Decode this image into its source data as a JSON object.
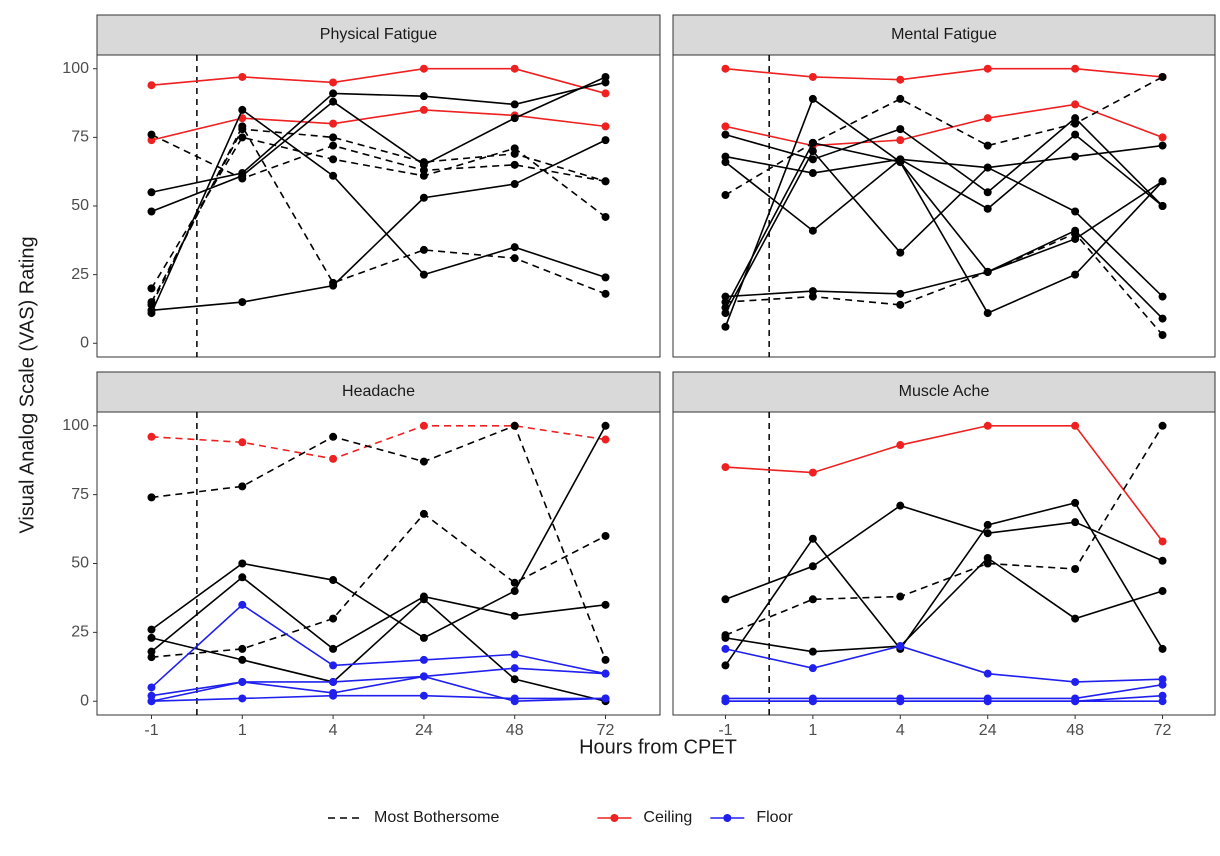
{
  "chart_data": {
    "type": "line",
    "x_label": "Hours from CPET",
    "y_label": "Visual Analog Scale (VAS) Rating",
    "categories": [
      "-1",
      "1",
      "4",
      "24",
      "48",
      "72"
    ],
    "ylim": [
      -5,
      105
    ],
    "yticks": [
      0,
      25,
      50,
      75,
      100
    ],
    "legend_position": "bottom",
    "legend": [
      {
        "name": "Most Bothersome",
        "color": "#000000",
        "dashed": true
      },
      {
        "name": "Ceiling",
        "color": "#ee2020",
        "dashed": false
      },
      {
        "name": "Floor",
        "color": "#2020ee",
        "dashed": false
      }
    ],
    "panels": [
      {
        "title": "Physical Fatigue",
        "series": [
          {
            "color": "#ee2020",
            "dashed": false,
            "values": [
              94,
              97,
              95,
              100,
              100,
              91
            ]
          },
          {
            "color": "#ee2020",
            "dashed": false,
            "values": [
              74,
              82,
              80,
              85,
              83,
              79
            ]
          },
          {
            "color": "#000000",
            "dashed": false,
            "values": [
              55,
              62,
              91,
              90,
              87,
              95
            ]
          },
          {
            "color": "#000000",
            "dashed": false,
            "values": [
              48,
              61,
              88,
              65,
              82,
              97
            ]
          },
          {
            "color": "#000000",
            "dashed": false,
            "values": [
              12,
              15,
              21,
              53,
              58,
              74
            ]
          },
          {
            "color": "#000000",
            "dashed": false,
            "values": [
              11,
              85,
              61,
              25,
              35,
              24
            ]
          },
          {
            "color": "#000000",
            "dashed": true,
            "values": [
              76,
              60,
              72,
              63,
              65,
              59
            ]
          },
          {
            "color": "#000000",
            "dashed": true,
            "values": [
              20,
              75,
              67,
              61,
              71,
              46
            ]
          },
          {
            "color": "#000000",
            "dashed": true,
            "values": [
              15,
              78,
              75,
              66,
              69,
              59
            ]
          },
          {
            "color": "#000000",
            "dashed": true,
            "values": [
              14,
              79,
              22,
              34,
              31,
              18
            ]
          }
        ]
      },
      {
        "title": "Mental Fatigue",
        "series": [
          {
            "color": "#ee2020",
            "dashed": false,
            "values": [
              100,
              97,
              96,
              100,
              100,
              97
            ]
          },
          {
            "color": "#ee2020",
            "dashed": false,
            "values": [
              79,
              72,
              74,
              82,
              87,
              75
            ]
          },
          {
            "color": "#000000",
            "dashed": true,
            "values": [
              54,
              73,
              89,
              72,
              80,
              97
            ]
          },
          {
            "color": "#000000",
            "dashed": true,
            "values": [
              15,
              17,
              14,
              26,
              40,
              3
            ]
          },
          {
            "color": "#000000",
            "dashed": false,
            "values": [
              17,
              19,
              18,
              26,
              38,
              59
            ]
          },
          {
            "color": "#000000",
            "dashed": false,
            "values": [
              6,
              89,
              66,
              11,
              25,
              59
            ]
          },
          {
            "color": "#000000",
            "dashed": false,
            "values": [
              76,
              67,
              78,
              55,
              82,
              50
            ]
          },
          {
            "color": "#000000",
            "dashed": false,
            "values": [
              68,
              62,
              67,
              64,
              68,
              72
            ]
          },
          {
            "color": "#000000",
            "dashed": false,
            "values": [
              66,
              41,
              67,
              49,
              76,
              50
            ]
          },
          {
            "color": "#000000",
            "dashed": false,
            "values": [
              11,
              70,
              33,
              64,
              48,
              17
            ]
          },
          {
            "color": "#000000",
            "dashed": false,
            "values": [
              13,
              73,
              66,
              26,
              41,
              9
            ]
          }
        ]
      },
      {
        "title": "Headache",
        "series": [
          {
            "color": "#ee2020",
            "dashed": true,
            "values": [
              96,
              94,
              88,
              100,
              100,
              95
            ]
          },
          {
            "color": "#000000",
            "dashed": true,
            "values": [
              74,
              78,
              96,
              87,
              100,
              15
            ]
          },
          {
            "color": "#000000",
            "dashed": true,
            "values": [
              16,
              19,
              30,
              68,
              43,
              60
            ]
          },
          {
            "color": "#000000",
            "dashed": false,
            "values": [
              26,
              50,
              44,
              23,
              40,
              100
            ]
          },
          {
            "color": "#000000",
            "dashed": false,
            "values": [
              23,
              15,
              7,
              37,
              8,
              0
            ]
          },
          {
            "color": "#000000",
            "dashed": false,
            "values": [
              18,
              45,
              19,
              38,
              31,
              35
            ]
          },
          {
            "color": "#2020ee",
            "dashed": false,
            "values": [
              5,
              35,
              13,
              15,
              17,
              10
            ]
          },
          {
            "color": "#2020ee",
            "dashed": false,
            "values": [
              0,
              7,
              3,
              9,
              12,
              10
            ]
          },
          {
            "color": "#2020ee",
            "dashed": false,
            "values": [
              2,
              7,
              7,
              9,
              0,
              1
            ]
          },
          {
            "color": "#2020ee",
            "dashed": false,
            "values": [
              0,
              1,
              2,
              2,
              1,
              1
            ]
          }
        ]
      },
      {
        "title": "Muscle Ache",
        "series": [
          {
            "color": "#ee2020",
            "dashed": false,
            "values": [
              85,
              83,
              93,
              100,
              100,
              58
            ]
          },
          {
            "color": "#000000",
            "dashed": true,
            "values": [
              24,
              37,
              38,
              50,
              48,
              100
            ]
          },
          {
            "color": "#000000",
            "dashed": false,
            "values": [
              37,
              49,
              71,
              61,
              65,
              51
            ]
          },
          {
            "color": "#000000",
            "dashed": false,
            "values": [
              13,
              59,
              19,
              64,
              72,
              19
            ]
          },
          {
            "color": "#000000",
            "dashed": false,
            "values": [
              23,
              18,
              20,
              52,
              30,
              40
            ]
          },
          {
            "color": "#2020ee",
            "dashed": false,
            "values": [
              19,
              12,
              20,
              10,
              7,
              8
            ]
          },
          {
            "color": "#2020ee",
            "dashed": false,
            "values": [
              1,
              1,
              1,
              1,
              1,
              6
            ]
          },
          {
            "color": "#2020ee",
            "dashed": false,
            "values": [
              0,
              0,
              0,
              0,
              0,
              2
            ]
          },
          {
            "color": "#2020ee",
            "dashed": false,
            "values": [
              0,
              0,
              0,
              0,
              0,
              0
            ]
          }
        ]
      }
    ]
  }
}
